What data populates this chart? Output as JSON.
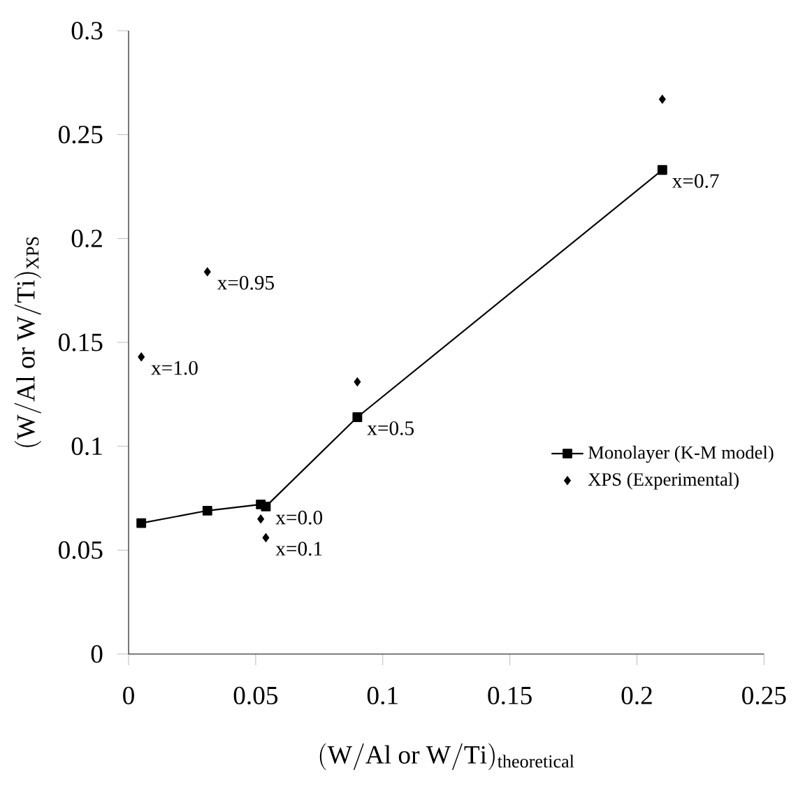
{
  "chart_data": {
    "type": "line",
    "xlabel": "\\mathrm{(W/Al\\ or\\ W/Ti)_{theoretical}}",
    "ylabel": "\\mathrm{(W/Al\\ or\\ W/Ti)_{XPS}}",
    "xlim": [
      0,
      0.25
    ],
    "ylim": [
      0,
      0.3
    ],
    "xticks": [
      0,
      0.05,
      0.1,
      0.15,
      0.2,
      0.25
    ],
    "yticks": [
      0,
      0.05,
      0.1,
      0.15,
      0.2,
      0.25,
      0.3
    ],
    "grid": false,
    "legend": "right",
    "series": [
      {
        "name": "Monolayer (K-M model)",
        "type": "line",
        "marker": "square",
        "line_style": "solid",
        "color": "#000000",
        "x": [
          0.005,
          0.031,
          0.052,
          0.054,
          0.09,
          0.21
        ],
        "values": [
          0.063,
          0.069,
          0.072,
          0.071,
          0.114,
          0.233
        ]
      },
      {
        "name": "XPS (Experimental)",
        "type": "scatter",
        "marker": "diamond",
        "color": "#000000",
        "x": [
          0.005,
          0.031,
          0.052,
          0.054,
          0.09,
          0.21
        ],
        "values": [
          0.143,
          0.184,
          0.065,
          0.056,
          0.131,
          0.267
        ]
      }
    ],
    "annotations": [
      {
        "text": "x=1.0",
        "x": 0.005,
        "y": 0.143
      },
      {
        "text": "x=0.95",
        "x": 0.031,
        "y": 0.184
      },
      {
        "text": "x=0.0",
        "x": 0.054,
        "y": 0.071
      },
      {
        "text": "x=0.1",
        "x": 0.054,
        "y": 0.056
      },
      {
        "text": "x=0.5",
        "x": 0.09,
        "y": 0.114
      },
      {
        "text": "x=0.7",
        "x": 0.21,
        "y": 0.233
      }
    ]
  }
}
